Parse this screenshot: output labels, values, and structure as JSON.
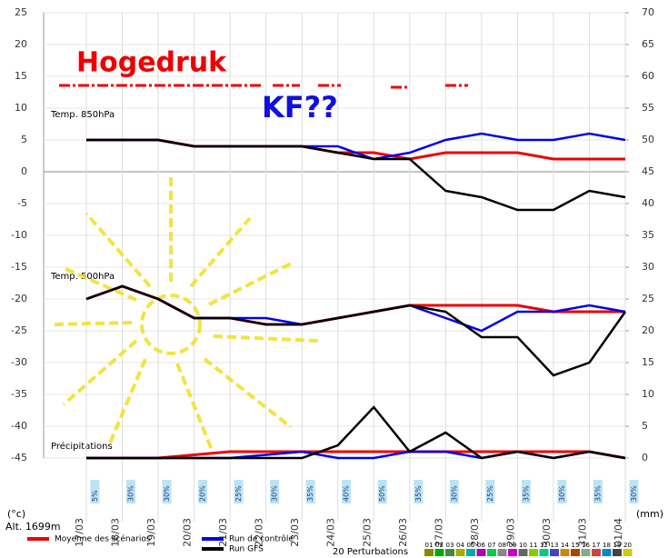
{
  "chart_data": {
    "type": "line",
    "y_label": "(°c)",
    "y2_label": "(mm)",
    "altitude": "Alt. 1699m",
    "annotations": [
      "Hogedruk",
      "KF??"
    ],
    "panel_labels": [
      "Temp. 850hPa",
      "Temp. 500hPa",
      "Précipitations"
    ],
    "categories": [
      "17/03",
      "18/03",
      "19/03",
      "20/03",
      "21/03",
      "22/03",
      "23/03",
      "24/03",
      "25/03",
      "26/03",
      "27/03",
      "28/03",
      "29/03",
      "30/03",
      "31/03",
      "01/04"
    ],
    "precip_probability": [
      "5%",
      "30%",
      "30%",
      "20%",
      "25%",
      "30%",
      "35%",
      "40%",
      "50%",
      "35%",
      "30%",
      "25%",
      "35%",
      "30%",
      "35%",
      "30%"
    ],
    "ylim": [
      -45,
      25
    ],
    "yticks": [
      -45,
      -40,
      -35,
      -30,
      -25,
      -20,
      -15,
      -10,
      -5,
      0,
      5,
      10,
      15,
      20,
      25
    ],
    "y2lim": [
      0,
      70
    ],
    "y2ticks": [
      0,
      5,
      10,
      15,
      20,
      25,
      30,
      35,
      40,
      45,
      50,
      55,
      60,
      65,
      70
    ],
    "series": [
      {
        "name": "Moyenne des scénarios",
        "color": "#ee0000",
        "t850": [
          5,
          5,
          5,
          4,
          4,
          4,
          4,
          3,
          3,
          2,
          3,
          3,
          3,
          2,
          2,
          2
        ],
        "t500": [
          -20,
          -18,
          -20,
          -23,
          -23,
          -24,
          -24,
          -23,
          -22,
          -21,
          -21,
          -21,
          -21,
          -22,
          -22,
          -22
        ],
        "precip": [
          0,
          0,
          0,
          0.5,
          1,
          1,
          1,
          1,
          1,
          1,
          1,
          1,
          1,
          1,
          1,
          0
        ]
      },
      {
        "name": "Run de contrôle",
        "color": "#0000ee",
        "t850": [
          5,
          5,
          5,
          4,
          4,
          4,
          4,
          4,
          2,
          3,
          5,
          6,
          5,
          5,
          6,
          5
        ],
        "t500": [
          -20,
          -18,
          -20,
          -23,
          -23,
          -23,
          -24,
          -23,
          -22,
          -21,
          -23,
          -25,
          -22,
          -22,
          -21,
          -22
        ],
        "precip": [
          0,
          0,
          0,
          0,
          0,
          0.5,
          1,
          0,
          0,
          1,
          1,
          0,
          1,
          0,
          1,
          0
        ]
      },
      {
        "name": "Run GFS",
        "color": "#000000",
        "t850": [
          5,
          5,
          5,
          4,
          4,
          4,
          4,
          3,
          2,
          2,
          -3,
          -4,
          -6,
          -6,
          -3,
          -4
        ],
        "t500": [
          -20,
          -18,
          -20,
          -23,
          -23,
          -24,
          -24,
          -23,
          -22,
          -21,
          -22,
          -26,
          -26,
          -32,
          -30,
          -22
        ],
        "precip": [
          0,
          0,
          0,
          0,
          0,
          0,
          0,
          2,
          8,
          1,
          4,
          0,
          1,
          0,
          1,
          0
        ]
      }
    ],
    "perturbations": {
      "label": "20 Perturbations",
      "ids": [
        "01",
        "02",
        "03",
        "04",
        "05",
        "06",
        "07",
        "08",
        "09",
        "10",
        "11",
        "12",
        "13",
        "14",
        "15",
        "16",
        "17",
        "18",
        "19",
        "20"
      ],
      "colors": [
        "#888800",
        "#00aa00",
        "#448844",
        "#aaaa00",
        "#00aaaa",
        "#aa00aa",
        "#00cc44",
        "#888888",
        "#cc00cc",
        "#666666",
        "#88cc00",
        "#00cc88",
        "#4444cc",
        "#cc8800",
        "#aa4400",
        "#88aa88",
        "#cc4444",
        "#0088cc",
        "#444444",
        "#cccc00"
      ]
    }
  }
}
